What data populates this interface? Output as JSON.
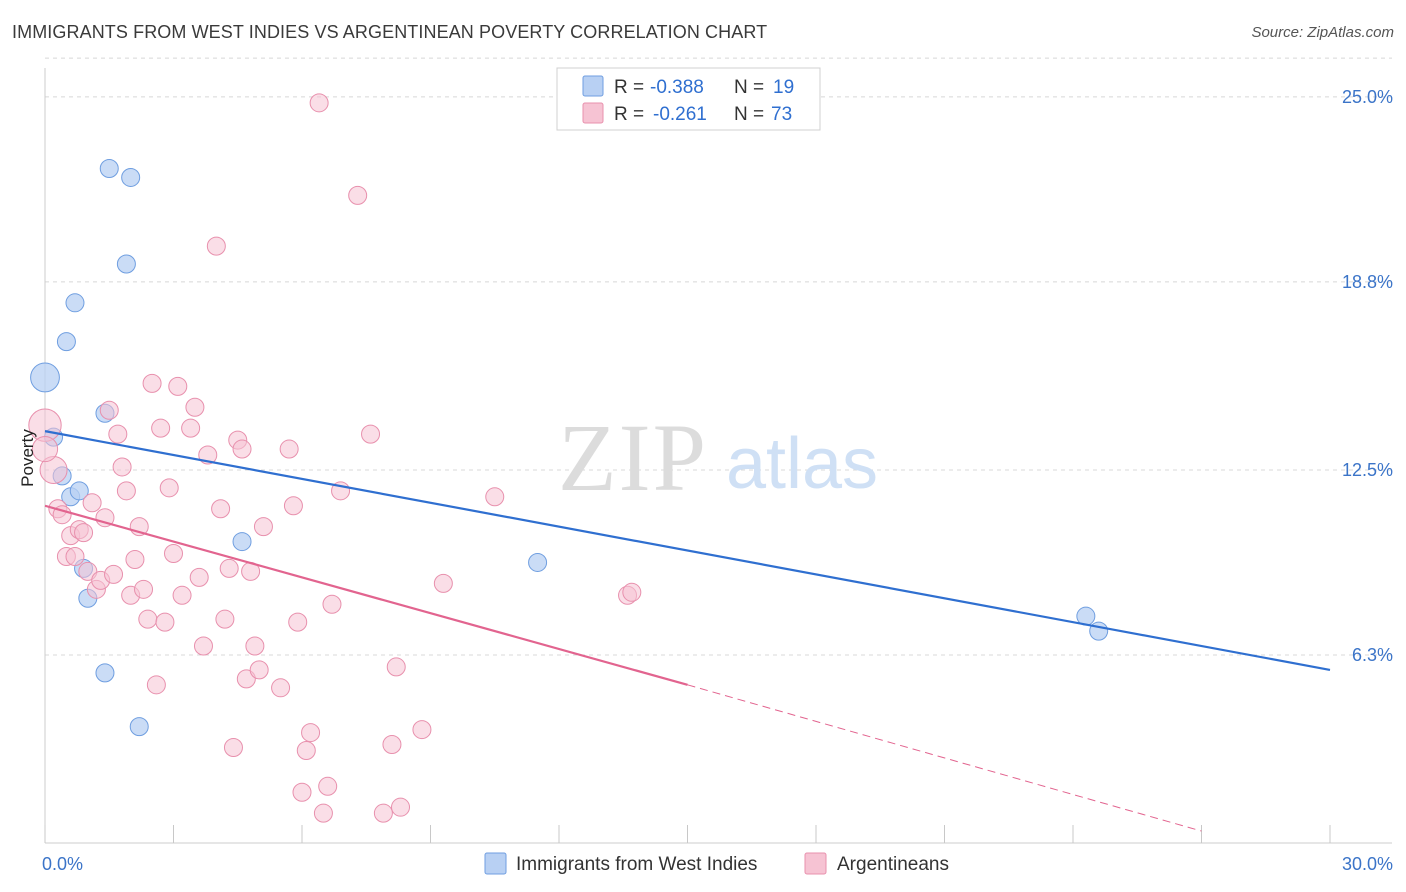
{
  "title": "IMMIGRANTS FROM WEST INDIES VS ARGENTINEAN POVERTY CORRELATION CHART",
  "source": "Source: ZipAtlas.com",
  "watermark": {
    "zip": "ZIP",
    "atlas": "atlas"
  },
  "colors": {
    "blue": "#2f6fd0",
    "blue_fill": "#b8d0f3",
    "pink": "#e2648f",
    "pink_fill": "#f6c3d3",
    "grid": "#d8d8d8",
    "tick_text": "#3b74c8"
  },
  "chart_data": {
    "type": "scatter",
    "xlabel": "",
    "ylabel": "Poverty",
    "xlim": [
      0,
      30
    ],
    "ylim": [
      0,
      25.8
    ],
    "x_tick_labels": [
      {
        "value": 0,
        "label": "0.0%"
      },
      {
        "value": 30,
        "label": "30.0%"
      }
    ],
    "y_ticks": [
      {
        "value": 25.0,
        "label": "25.0%"
      },
      {
        "value": 18.8,
        "label": "18.8%"
      },
      {
        "value": 12.5,
        "label": "12.5%"
      },
      {
        "value": 6.3,
        "label": "6.3%"
      }
    ],
    "legend_top": {
      "rows": [
        {
          "series": "Immigrants from West Indies",
          "r_label": "R =",
          "r_value": "-0.388",
          "n_label": "N =",
          "n_value": "19"
        },
        {
          "series": "Argentineans",
          "r_label": "R =",
          "r_value": "-0.261",
          "n_label": "N =",
          "n_value": "73"
        }
      ]
    },
    "series": [
      {
        "name": "Immigrants from West Indies",
        "color": "blue",
        "points": [
          [
            0.0,
            15.6,
            1.6
          ],
          [
            0.2,
            13.6,
            1
          ],
          [
            0.4,
            12.3,
            1
          ],
          [
            0.5,
            16.8,
            1
          ],
          [
            0.6,
            11.6,
            1
          ],
          [
            0.7,
            18.1,
            1
          ],
          [
            0.8,
            11.8,
            1
          ],
          [
            0.9,
            9.2,
            1
          ],
          [
            1.0,
            8.2,
            1
          ],
          [
            1.4,
            14.4,
            1
          ],
          [
            1.4,
            5.7,
            1
          ],
          [
            1.5,
            22.6,
            1
          ],
          [
            1.9,
            19.4,
            1
          ],
          [
            2.2,
            3.9,
            1
          ],
          [
            2.0,
            22.3,
            1
          ],
          [
            4.6,
            10.1,
            1
          ],
          [
            11.5,
            9.4,
            1
          ],
          [
            24.3,
            7.6,
            1
          ],
          [
            24.6,
            7.1,
            1
          ]
        ],
        "trend": {
          "x": [
            0.0,
            30.0
          ],
          "y": [
            13.8,
            5.8
          ],
          "dashed_from": null
        }
      },
      {
        "name": "Argentineans",
        "color": "pink",
        "points": [
          [
            0.0,
            14.0,
            1.8
          ],
          [
            0.2,
            12.5,
            1.5
          ],
          [
            0.0,
            13.2,
            1.4
          ],
          [
            0.3,
            11.2,
            1
          ],
          [
            0.4,
            11.0,
            1
          ],
          [
            0.5,
            9.6,
            1
          ],
          [
            0.6,
            10.3,
            1
          ],
          [
            0.7,
            9.6,
            1
          ],
          [
            0.8,
            10.5,
            1
          ],
          [
            0.9,
            10.4,
            1
          ],
          [
            1.0,
            9.1,
            1
          ],
          [
            1.1,
            11.4,
            1
          ],
          [
            1.2,
            8.5,
            1
          ],
          [
            1.3,
            8.8,
            1
          ],
          [
            1.4,
            10.9,
            1
          ],
          [
            1.5,
            14.5,
            1
          ],
          [
            1.6,
            9.0,
            1
          ],
          [
            1.7,
            13.7,
            1
          ],
          [
            1.8,
            12.6,
            1
          ],
          [
            1.9,
            11.8,
            1
          ],
          [
            2.0,
            8.3,
            1
          ],
          [
            2.1,
            9.5,
            1
          ],
          [
            2.2,
            10.6,
            1
          ],
          [
            2.3,
            8.5,
            1
          ],
          [
            2.4,
            7.5,
            1
          ],
          [
            2.5,
            15.4,
            1
          ],
          [
            2.6,
            5.3,
            1
          ],
          [
            2.7,
            13.9,
            1
          ],
          [
            2.8,
            7.4,
            1
          ],
          [
            2.9,
            11.9,
            1
          ],
          [
            3.0,
            9.7,
            1
          ],
          [
            3.1,
            15.3,
            1
          ],
          [
            3.2,
            8.3,
            1
          ],
          [
            3.4,
            13.9,
            1
          ],
          [
            3.5,
            14.6,
            1
          ],
          [
            3.6,
            8.9,
            1
          ],
          [
            3.7,
            6.6,
            1
          ],
          [
            3.8,
            13.0,
            1
          ],
          [
            4.0,
            20.0,
            1
          ],
          [
            4.1,
            11.2,
            1
          ],
          [
            4.2,
            7.5,
            1
          ],
          [
            4.3,
            9.2,
            1
          ],
          [
            4.4,
            3.2,
            1
          ],
          [
            4.5,
            13.5,
            1
          ],
          [
            4.6,
            13.2,
            1
          ],
          [
            4.7,
            5.5,
            1
          ],
          [
            4.8,
            9.1,
            1
          ],
          [
            4.9,
            6.6,
            1
          ],
          [
            5.0,
            5.8,
            1
          ],
          [
            5.1,
            10.6,
            1
          ],
          [
            5.5,
            5.2,
            1
          ],
          [
            5.7,
            13.2,
            1
          ],
          [
            5.8,
            11.3,
            1
          ],
          [
            5.9,
            7.4,
            1
          ],
          [
            6.0,
            1.7,
            1
          ],
          [
            6.1,
            3.1,
            1
          ],
          [
            6.2,
            3.7,
            1
          ],
          [
            6.4,
            24.8,
            1
          ],
          [
            6.5,
            1.0,
            1
          ],
          [
            6.6,
            1.9,
            1
          ],
          [
            6.7,
            8.0,
            1
          ],
          [
            6.9,
            11.8,
            1
          ],
          [
            7.3,
            21.7,
            1
          ],
          [
            7.6,
            13.7,
            1
          ],
          [
            7.9,
            1.0,
            1
          ],
          [
            8.1,
            3.3,
            1
          ],
          [
            8.2,
            5.9,
            1
          ],
          [
            8.3,
            1.2,
            1
          ],
          [
            8.8,
            3.8,
            1
          ],
          [
            9.3,
            8.7,
            1
          ],
          [
            10.5,
            11.6,
            1
          ],
          [
            13.6,
            8.3,
            1
          ],
          [
            13.7,
            8.4,
            1
          ]
        ],
        "trend": {
          "x": [
            0.0,
            15.0,
            27.0
          ],
          "y": [
            11.3,
            5.3,
            0.4
          ],
          "dashed_from": 15.0
        }
      }
    ],
    "legend_bottom": [
      {
        "label": "Immigrants from West Indies",
        "color": "blue"
      },
      {
        "label": "Argentineans",
        "color": "pink"
      }
    ]
  }
}
